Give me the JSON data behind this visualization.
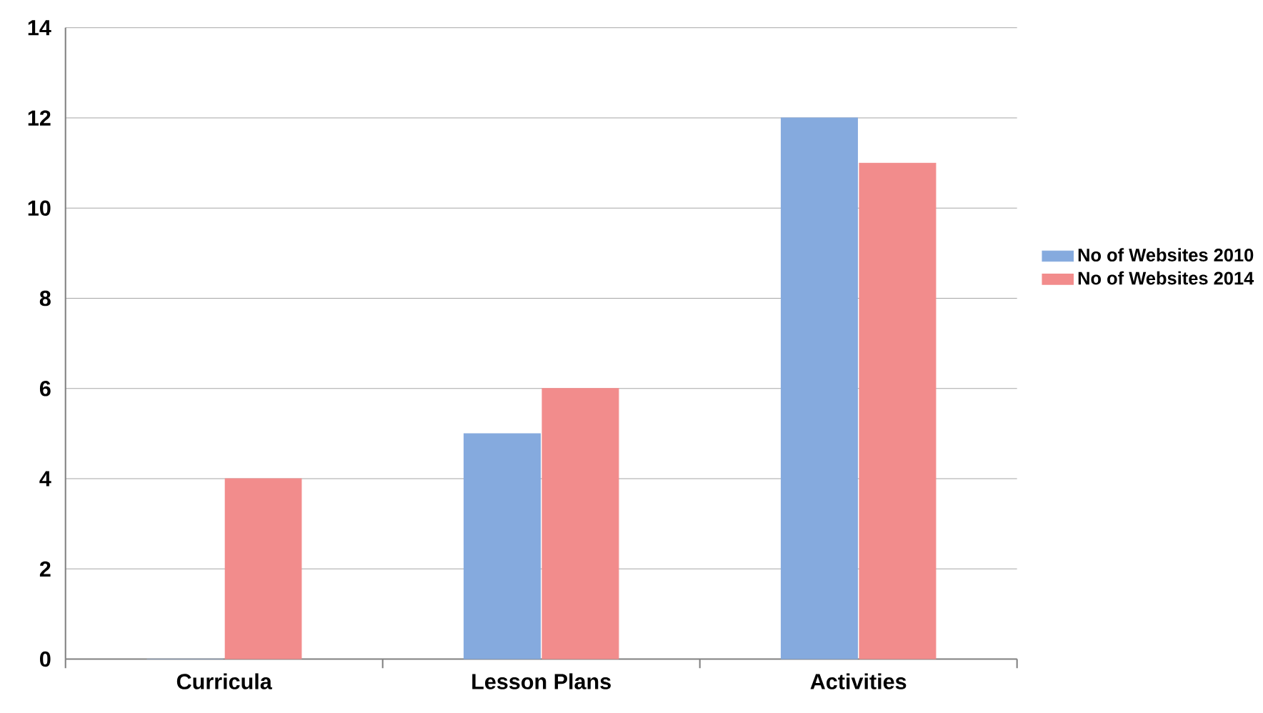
{
  "chart_data": {
    "type": "bar",
    "categories": [
      "Curricula",
      "Lesson Plans",
      "Activities"
    ],
    "series": [
      {
        "name": "No of Websites 2010",
        "color": "#85aade",
        "values": [
          0,
          5,
          12
        ]
      },
      {
        "name": "No of Websites 2014",
        "color": "#f28c8c",
        "values": [
          4,
          6,
          11
        ]
      }
    ],
    "ylim": [
      0,
      14
    ],
    "yticks": [
      0,
      2,
      4,
      6,
      8,
      10,
      12,
      14
    ],
    "grid": "y",
    "legend": "right"
  }
}
